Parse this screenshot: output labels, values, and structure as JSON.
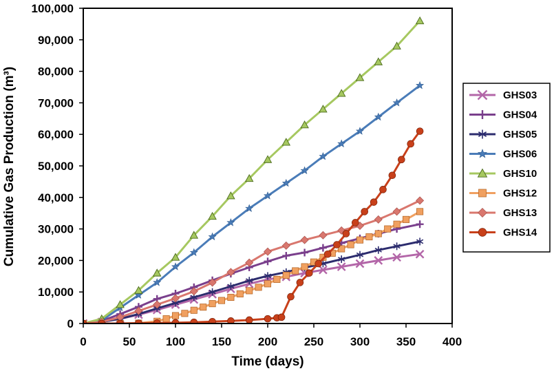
{
  "chart_data": {
    "type": "line",
    "xlabel": "Time (days)",
    "ylabel": "Cumulative Gas Production (m³)",
    "xlim": [
      0,
      400
    ],
    "ylim": [
      0,
      100000
    ],
    "x_ticks": [
      "0",
      "50",
      "100",
      "150",
      "200",
      "250",
      "300",
      "350",
      "400"
    ],
    "y_ticks": [
      "0",
      "10,000",
      "20,000",
      "30,000",
      "40,000",
      "50,000",
      "60,000",
      "70,000",
      "80,000",
      "90,000",
      "100,000"
    ],
    "grid": false,
    "legend_position": "right",
    "series": [
      {
        "name": "GHS03",
        "color": "#b366a8",
        "marker": "x",
        "x": [
          0,
          20,
          40,
          60,
          80,
          100,
          120,
          140,
          160,
          180,
          200,
          220,
          240,
          260,
          280,
          300,
          320,
          340,
          365
        ],
        "y": [
          0,
          500,
          1500,
          2800,
          4300,
          6000,
          7600,
          9300,
          11000,
          12600,
          14000,
          14800,
          16000,
          17000,
          18000,
          19000,
          20000,
          21000,
          22000
        ]
      },
      {
        "name": "GHS04",
        "color": "#7a3f8c",
        "marker": "plus",
        "x": [
          0,
          20,
          40,
          60,
          80,
          100,
          120,
          140,
          160,
          180,
          200,
          220,
          240,
          260,
          280,
          300,
          320,
          340,
          365
        ],
        "y": [
          0,
          800,
          3000,
          5300,
          7800,
          9500,
          11500,
          13700,
          15800,
          17800,
          19700,
          21500,
          22500,
          24000,
          25500,
          27000,
          28500,
          30000,
          31500
        ]
      },
      {
        "name": "GHS05",
        "color": "#2c2c6e",
        "marker": "star6",
        "x": [
          0,
          20,
          40,
          60,
          80,
          100,
          120,
          140,
          160,
          180,
          200,
          220,
          240,
          260,
          280,
          300,
          320,
          340,
          365
        ],
        "y": [
          0,
          500,
          1500,
          3000,
          4800,
          6500,
          8300,
          10000,
          11800,
          13600,
          15100,
          16300,
          17700,
          19000,
          20400,
          21800,
          23300,
          24500,
          26000
        ]
      },
      {
        "name": "GHS06",
        "color": "#4a7cb8",
        "marker": "star5",
        "x": [
          0,
          20,
          40,
          60,
          80,
          100,
          120,
          140,
          160,
          180,
          200,
          220,
          240,
          260,
          280,
          300,
          320,
          340,
          365
        ],
        "y": [
          0,
          1000,
          5000,
          9000,
          13000,
          18000,
          22500,
          27500,
          32000,
          36500,
          40500,
          44500,
          48500,
          53000,
          57000,
          61000,
          65500,
          70000,
          75500
        ]
      },
      {
        "name": "GHS10",
        "color": "#a6c860",
        "marker": "triangle",
        "x": [
          0,
          20,
          40,
          60,
          80,
          100,
          120,
          140,
          160,
          180,
          200,
          220,
          240,
          260,
          280,
          300,
          320,
          340,
          365
        ],
        "y": [
          0,
          1500,
          6000,
          10500,
          16000,
          21000,
          28000,
          34000,
          40500,
          46000,
          52000,
          57500,
          63000,
          68000,
          73000,
          78000,
          83000,
          88000,
          96000
        ]
      },
      {
        "name": "GHS12",
        "color": "#f0a060",
        "marker": "square",
        "x": [
          0,
          20,
          40,
          60,
          80,
          90,
          100,
          110,
          120,
          130,
          140,
          150,
          160,
          170,
          180,
          190,
          200,
          210,
          220,
          230,
          240,
          250,
          260,
          270,
          280,
          290,
          300,
          310,
          320,
          330,
          340,
          350,
          365
        ],
        "y": [
          0,
          0,
          0,
          100,
          700,
          1500,
          2500,
          3200,
          4200,
          5200,
          6300,
          7300,
          8300,
          9400,
          10400,
          11500,
          12600,
          14000,
          15300,
          16700,
          18000,
          19500,
          21000,
          22300,
          23700,
          25000,
          26500,
          27500,
          28500,
          30000,
          31500,
          33000,
          35500
        ]
      },
      {
        "name": "GHS13",
        "color": "#d9776e",
        "marker": "diamond",
        "x": [
          0,
          20,
          40,
          60,
          80,
          100,
          120,
          140,
          160,
          180,
          200,
          220,
          240,
          260,
          280,
          300,
          320,
          340,
          365
        ],
        "y": [
          0,
          500,
          2000,
          4000,
          6000,
          8000,
          10200,
          13000,
          16300,
          19300,
          22800,
          24700,
          26500,
          28000,
          29500,
          31000,
          33000,
          35500,
          39000
        ]
      },
      {
        "name": "GHS14",
        "color": "#c8401a",
        "marker": "circle",
        "x": [
          0,
          20,
          40,
          60,
          80,
          100,
          120,
          140,
          160,
          180,
          200,
          210,
          215,
          225,
          235,
          245,
          255,
          265,
          275,
          285,
          295,
          305,
          315,
          325,
          335,
          345,
          355,
          365
        ],
        "y": [
          0,
          0,
          0,
          100,
          150,
          250,
          400,
          600,
          800,
          1100,
          1500,
          1800,
          2000,
          8500,
          13000,
          16000,
          19000,
          22000,
          25000,
          28500,
          32000,
          35500,
          38500,
          42500,
          47000,
          52000,
          57000,
          61000
        ]
      }
    ]
  }
}
